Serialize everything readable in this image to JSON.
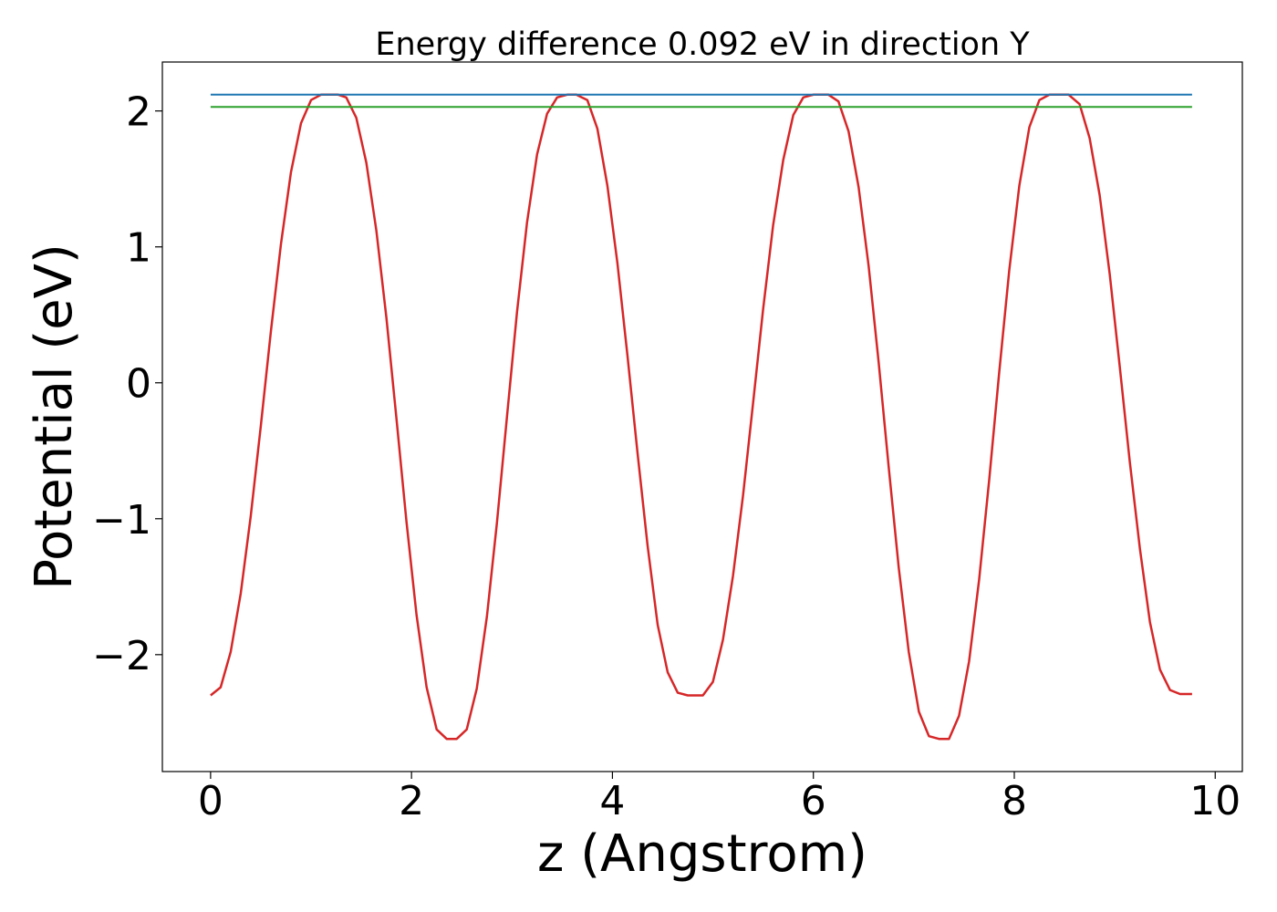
{
  "chart_data": {
    "type": "line",
    "title": "Energy difference 0.092 eV in direction Y",
    "xlabel": "z (Angstrom)",
    "ylabel": "Potential (eV)",
    "xlim": [
      -0.48,
      10.27
    ],
    "ylim": [
      -2.86,
      2.36
    ],
    "x_ticks": [
      0,
      2,
      4,
      6,
      8,
      10
    ],
    "x_tick_labels": [
      "0",
      "2",
      "4",
      "6",
      "8",
      "10"
    ],
    "y_ticks": [
      -2,
      -1,
      0,
      1,
      2
    ],
    "y_tick_labels": [
      "−2",
      "−1",
      "0",
      "1",
      "2"
    ],
    "grid": false,
    "series": [
      {
        "color": "#d62728",
        "x": [
          0.0,
          0.1,
          0.2,
          0.3,
          0.4,
          0.5,
          0.6,
          0.7,
          0.8,
          0.9,
          1.0,
          1.1,
          1.2,
          1.27,
          1.35,
          1.45,
          1.55,
          1.65,
          1.75,
          1.85,
          1.95,
          2.05,
          2.15,
          2.25,
          2.35,
          2.45,
          2.55,
          2.65,
          2.75,
          2.85,
          2.95,
          3.05,
          3.15,
          3.25,
          3.35,
          3.45,
          3.55,
          3.64,
          3.75,
          3.85,
          3.95,
          4.05,
          4.15,
          4.25,
          4.35,
          4.45,
          4.55,
          4.65,
          4.75,
          4.85,
          4.9,
          5.0,
          5.1,
          5.2,
          5.3,
          5.4,
          5.5,
          5.6,
          5.7,
          5.8,
          5.9,
          6.0,
          6.1,
          6.15,
          6.25,
          6.35,
          6.45,
          6.55,
          6.65,
          6.75,
          6.85,
          6.95,
          7.05,
          7.15,
          7.25,
          7.35,
          7.45,
          7.55,
          7.65,
          7.75,
          7.85,
          7.95,
          8.05,
          8.15,
          8.25,
          8.35,
          8.45,
          8.54,
          8.65,
          8.75,
          8.85,
          8.95,
          9.05,
          9.15,
          9.25,
          9.35,
          9.45,
          9.55,
          9.65,
          9.77
        ],
        "y": [
          -2.3,
          -2.24,
          -1.98,
          -1.55,
          -0.98,
          -0.32,
          0.38,
          1.02,
          1.55,
          1.91,
          2.08,
          2.12,
          2.12,
          2.12,
          2.1,
          1.95,
          1.62,
          1.12,
          0.48,
          -0.26,
          -1.02,
          -1.71,
          -2.24,
          -2.55,
          -2.62,
          -2.62,
          -2.55,
          -2.25,
          -1.72,
          -1.03,
          -0.25,
          0.52,
          1.18,
          1.68,
          1.98,
          2.1,
          2.12,
          2.12,
          2.08,
          1.87,
          1.45,
          0.88,
          0.2,
          -0.52,
          -1.2,
          -1.78,
          -2.13,
          -2.28,
          -2.3,
          -2.3,
          -2.3,
          -2.2,
          -1.89,
          -1.42,
          -0.83,
          -0.15,
          0.54,
          1.16,
          1.64,
          1.97,
          2.1,
          2.12,
          2.12,
          2.12,
          2.07,
          1.85,
          1.44,
          0.86,
          0.15,
          -0.62,
          -1.36,
          -1.98,
          -2.42,
          -2.6,
          -2.62,
          -2.62,
          -2.45,
          -2.05,
          -1.45,
          -0.72,
          0.08,
          0.83,
          1.45,
          1.88,
          2.08,
          2.12,
          2.12,
          2.12,
          2.05,
          1.8,
          1.38,
          0.8,
          0.12,
          -0.58,
          -1.22,
          -1.76,
          -2.11,
          -2.26,
          -2.29,
          -2.29
        ]
      },
      {
        "color": "#1f77b4",
        "x": [
          0.0,
          9.77
        ],
        "y": [
          2.12,
          2.12
        ]
      },
      {
        "color": "#2ca02c",
        "x": [
          0.0,
          9.77
        ],
        "y": [
          2.03,
          2.03
        ]
      }
    ]
  }
}
